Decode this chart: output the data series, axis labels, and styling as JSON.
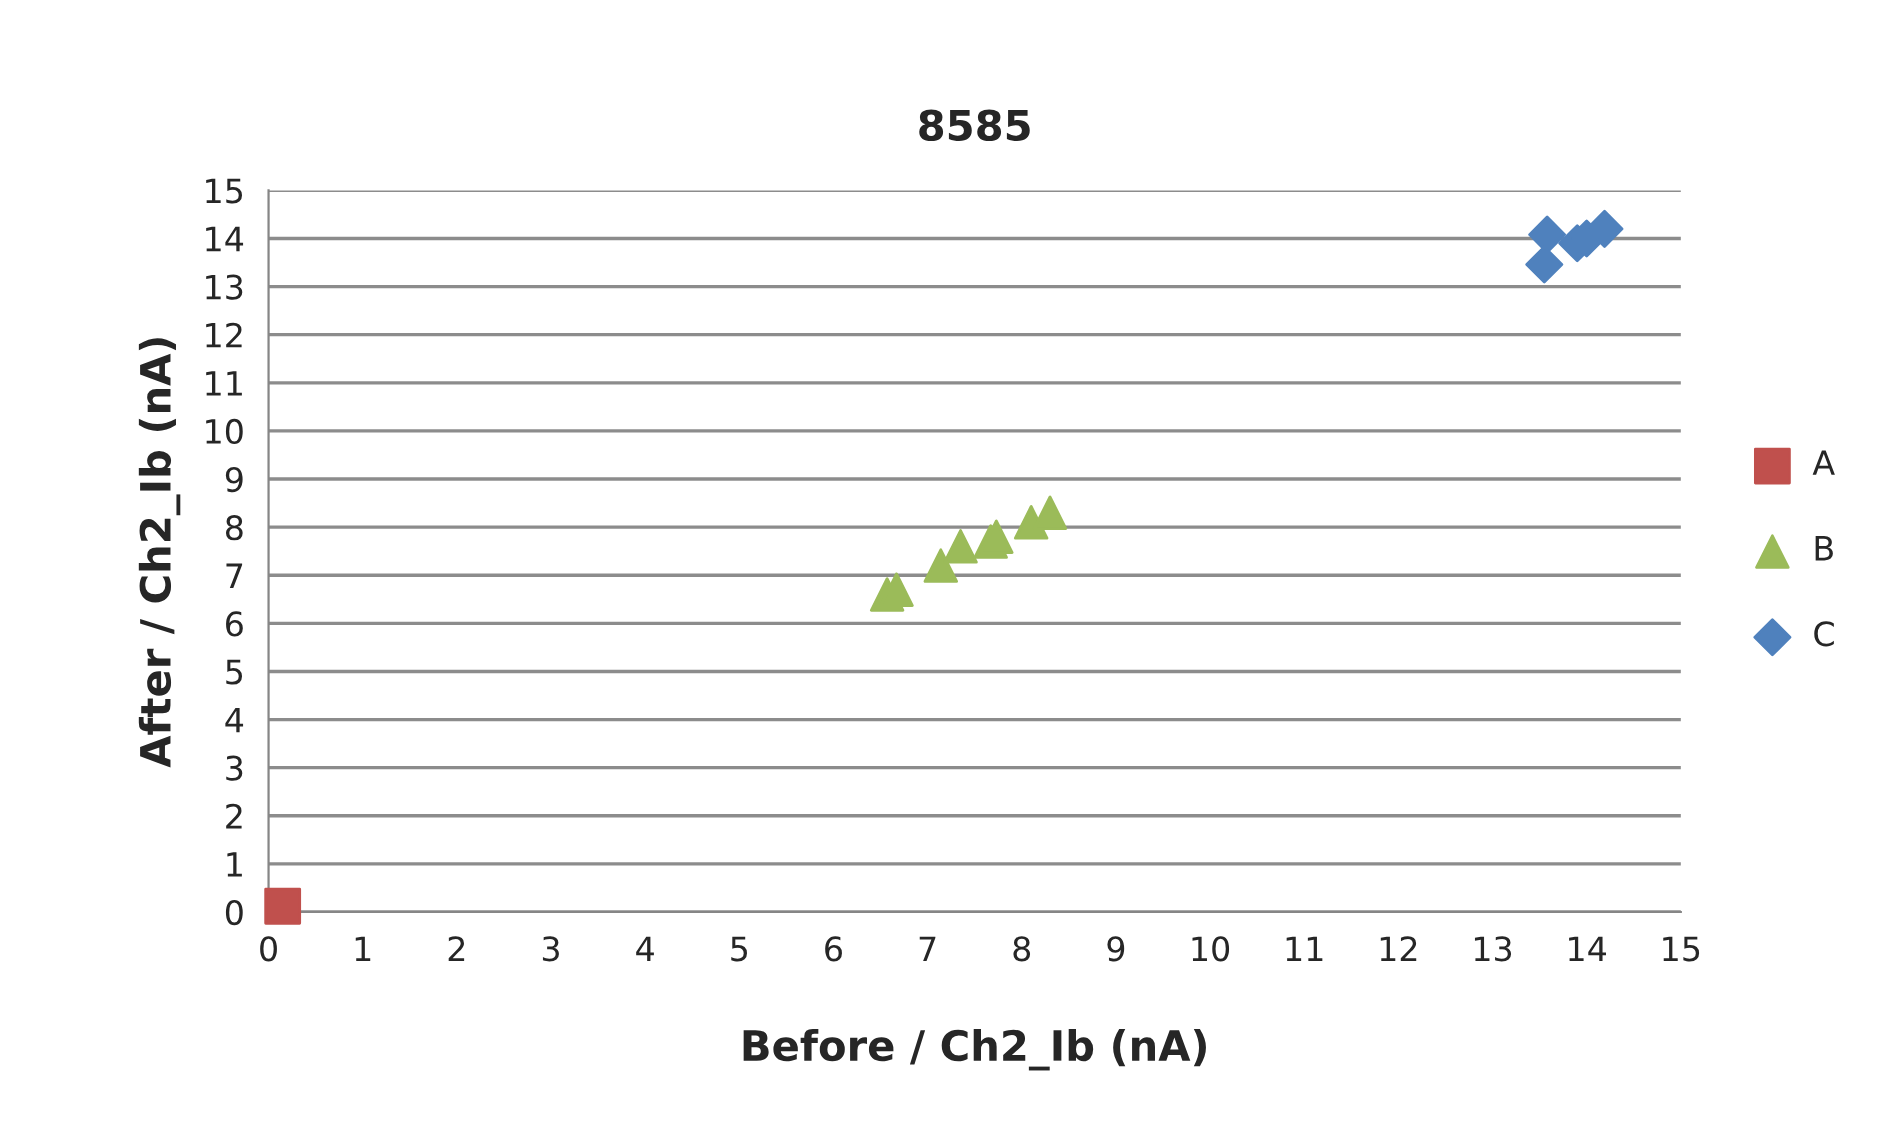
{
  "chart_data": {
    "type": "scatter",
    "title": "8585",
    "xlabel": "Before / Ch2_Ib (nA)",
    "ylabel": "After / Ch2_Ib (nA)",
    "xlim": [
      0,
      15
    ],
    "xticks": [
      0,
      1,
      2,
      3,
      4,
      5,
      6,
      7,
      8,
      9,
      10,
      11,
      12,
      13,
      14,
      15
    ],
    "ylim": [
      0,
      15
    ],
    "yticks": [
      0,
      1,
      2,
      3,
      4,
      5,
      6,
      7,
      8,
      9,
      10,
      11,
      12,
      13,
      14,
      15
    ],
    "grid": "y",
    "legend": "right",
    "series": [
      {
        "name": "A",
        "color": "#c0504d",
        "marker": "square",
        "x": [
          0.15
        ],
        "values": [
          0.12
        ]
      },
      {
        "name": "B",
        "color": "#9bbb59",
        "marker": "triangle",
        "x": [
          6.57,
          6.67,
          7.14,
          7.35,
          7.67,
          7.73,
          8.1,
          8.3
        ],
        "values": [
          6.6,
          6.7,
          7.2,
          7.6,
          7.7,
          7.8,
          8.1,
          8.3
        ]
      },
      {
        "name": "C",
        "color": "#4f81bd",
        "marker": "diamond",
        "x": [
          13.58,
          13.55,
          13.9,
          14.0,
          14.19
        ],
        "values": [
          14.08,
          13.46,
          13.9,
          14.0,
          14.2
        ]
      }
    ]
  }
}
